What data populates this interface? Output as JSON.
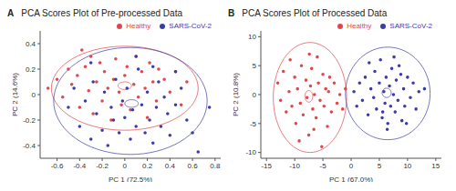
{
  "chart_data": [
    {
      "type": "scatter",
      "panel": "A",
      "title": "PCA Scores Plot of Pre-processed Data",
      "x_label": "PC 1 (72.5%)",
      "y_label": "PC 2 (14.6%)",
      "xlim": [
        -0.75,
        0.85
      ],
      "xticks": [
        -0.6,
        -0.4,
        -0.2,
        0,
        0.2,
        0.4,
        0.6,
        0.8
      ],
      "ylim": [
        -0.5,
        0.5
      ],
      "yticks": [
        -0.4,
        -0.2,
        0,
        0.2,
        0.4
      ],
      "grid": false,
      "legend": "top right",
      "marker": "circle",
      "series": [
        {
          "name": "Healthy",
          "color": "#e0474c",
          "x": [
            -0.68,
            -0.6,
            -0.55,
            -0.5,
            -0.47,
            -0.42,
            -0.4,
            -0.35,
            -0.32,
            -0.3,
            -0.28,
            -0.25,
            -0.22,
            -0.2,
            -0.18,
            -0.15,
            -0.12,
            -0.1,
            -0.08,
            -0.05,
            -0.03,
            0,
            0.02,
            0.05,
            0.08,
            0.1,
            0.12,
            0.15,
            0.18,
            0.2,
            0.22,
            0.25,
            0.28,
            0.3,
            0.35,
            0.4,
            0.45,
            0.5,
            0.55,
            -0.38
          ],
          "y": [
            0.05,
            0.12,
            -0.02,
            0.2,
            0.08,
            0.15,
            -0.1,
            0.22,
            0.03,
            0.3,
            -0.15,
            0.1,
            0.25,
            -0.05,
            0.18,
            0.05,
            -0.2,
            0.12,
            0.28,
            0.02,
            -0.08,
            0.15,
            0.22,
            -0.12,
            0.08,
            0.3,
            -0.02,
            0.18,
            0.05,
            -0.18,
            0.25,
            0.1,
            -0.05,
            0.2,
            0.12,
            0.02,
            0.18,
            -0.08,
            0.1,
            0.35
          ]
        },
        {
          "name": "SARS-CoV-2",
          "color": "#3c3ca8",
          "x": [
            -0.5,
            -0.45,
            -0.4,
            -0.35,
            -0.3,
            -0.28,
            -0.25,
            -0.2,
            -0.18,
            -0.15,
            -0.12,
            -0.1,
            -0.08,
            -0.05,
            -0.02,
            0,
            0.02,
            0.05,
            0.07,
            0.1,
            0.12,
            0.15,
            0.18,
            0.2,
            0.22,
            0.25,
            0.28,
            0.3,
            0.32,
            0.35,
            0.38,
            0.4,
            0.45,
            0.5,
            0.55,
            0.6,
            0.65,
            0.75,
            -0.3,
            0.1,
            0.25,
            0.45
          ],
          "y": [
            -0.1,
            0.05,
            -0.25,
            -0.05,
            -0.35,
            0.1,
            -0.15,
            -0.28,
            0.02,
            -0.4,
            -0.1,
            -0.2,
            0.12,
            -0.3,
            -0.05,
            -0.18,
            0.05,
            -0.35,
            -0.12,
            -0.25,
            0.2,
            -0.08,
            -0.3,
            0.02,
            -0.2,
            -0.38,
            -0.1,
            0.1,
            -0.25,
            -0.02,
            -0.15,
            -0.32,
            -0.08,
            0.05,
            -0.2,
            -0.3,
            -0.45,
            -0.1,
            0.25,
            0.3,
            0.22,
            0.18
          ]
        }
      ],
      "ellipses": [
        {
          "name": "Healthy",
          "center": [
            0.0,
            0.05
          ],
          "radii": [
            0.65,
            0.33
          ]
        },
        {
          "name": "SARS-CoV-2",
          "center": [
            0.05,
            -0.05
          ],
          "radii": [
            0.68,
            0.42
          ]
        },
        {
          "name": "Healthy",
          "center": [
            0.0,
            0.07
          ],
          "radii": [
            0.06,
            0.03
          ]
        },
        {
          "name": "SARS-CoV-2",
          "center": [
            0.06,
            -0.07
          ],
          "radii": [
            0.06,
            0.03
          ]
        }
      ]
    },
    {
      "type": "scatter",
      "panel": "B",
      "title": "PCA Scores Plot of Processed Data",
      "x_label": "PC 1 (67.0%)",
      "y_label": "PC 2 (10.8%)",
      "xlim": [
        -16,
        16
      ],
      "xticks": [
        -15,
        -10,
        -5,
        0,
        5,
        10,
        15
      ],
      "ylim": [
        -11,
        11
      ],
      "yticks": [
        -10,
        -5,
        0,
        5,
        10
      ],
      "grid": false,
      "legend": "top right",
      "marker": "circle",
      "series": [
        {
          "name": "SARS-CoV-2",
          "color": "#3c3ca8",
          "x": [
            0.5,
            1,
            1.5,
            2,
            2.5,
            3,
            3.5,
            4,
            4.2,
            4.5,
            5,
            5.2,
            5.5,
            5.8,
            6,
            6.2,
            6.5,
            6.8,
            7,
            7.2,
            7.5,
            7.8,
            8,
            8.3,
            8.5,
            9,
            9.3,
            9.5,
            10,
            10.5,
            11,
            11.5,
            12,
            13,
            3.2,
            6.4,
            7.6,
            9.8,
            5.6,
            8.8
          ],
          "y": [
            0.5,
            -2,
            2,
            -1,
            3,
            -3.5,
            1,
            -0.5,
            4,
            -2.5,
            2,
            6,
            -4,
            0.5,
            -1.5,
            3,
            -5,
            1.5,
            -2,
            4.5,
            0,
            -3,
            2.5,
            -1,
            5,
            -4.5,
            1,
            -2,
            3,
            -0.5,
            2,
            -2.5,
            0.5,
            1,
            5.5,
            -6,
            6.5,
            -5,
            -3,
            3.5
          ]
        },
        {
          "name": "Healthy",
          "color": "#e0474c",
          "x": [
            -13,
            -12.5,
            -12,
            -11.5,
            -11,
            -10.8,
            -10.5,
            -10,
            -9.8,
            -9.5,
            -9,
            -8.8,
            -8.5,
            -8,
            -7.8,
            -7.5,
            -7.2,
            -7,
            -6.8,
            -6.5,
            -6.2,
            -6,
            -5.8,
            -5.5,
            -5.2,
            -5,
            -4.8,
            -4.5,
            -4.2,
            -4,
            -3.5,
            -3,
            -2.5,
            -2,
            -1.5,
            -1,
            -9.2,
            -7.4,
            -6.6,
            -3.8
          ],
          "y": [
            2,
            -1,
            4,
            -3,
            0.5,
            6,
            -2,
            3,
            -5,
            1,
            -1.5,
            5,
            -3.5,
            2.5,
            -0.5,
            -7,
            1.5,
            4.5,
            -2.5,
            0,
            -4,
            6.5,
            2,
            -1,
            -9,
            3.5,
            -2,
            1,
            -5.5,
            0.5,
            -3,
            2,
            -1.5,
            0,
            -2.5,
            1,
            -8,
            7,
            -6,
            3
          ]
        }
      ],
      "ellipses": [
        {
          "name": "Healthy",
          "center": [
            -7.3,
            -0.5
          ],
          "radii": [
            6.5,
            9.5
          ]
        },
        {
          "name": "SARS-CoV-2",
          "center": [
            6.5,
            0.2
          ],
          "radii": [
            7.5,
            8
          ]
        },
        {
          "name": "Healthy",
          "center": [
            -7.5,
            -0.3
          ],
          "radii": [
            0.7,
            1
          ]
        },
        {
          "name": "SARS-CoV-2",
          "center": [
            6.3,
            0.3
          ],
          "radii": [
            0.8,
            0.8
          ]
        }
      ]
    }
  ]
}
